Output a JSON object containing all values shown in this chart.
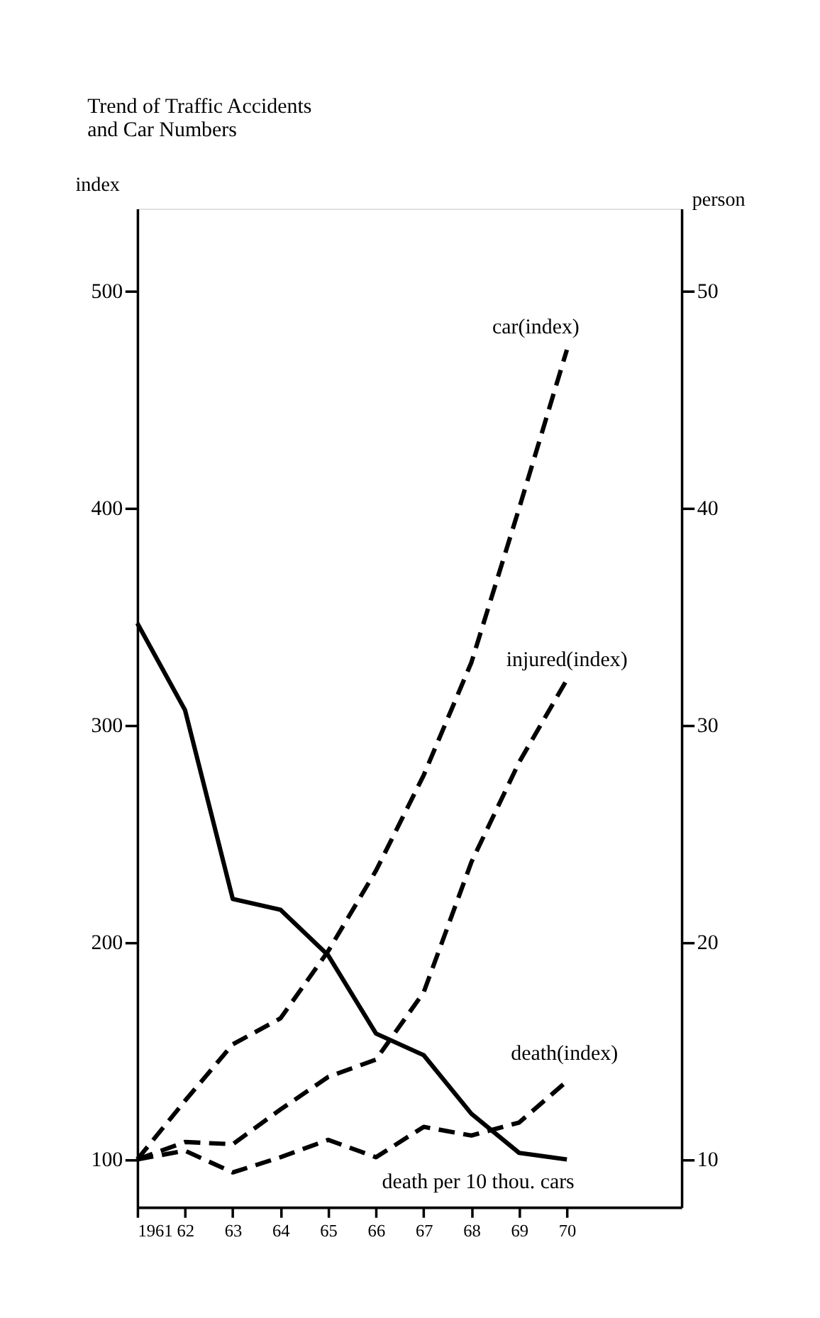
{
  "chart_data": {
    "type": "line",
    "title": "Trend of Traffic Accidents\nand Car Numbers",
    "ylabel": "index",
    "y2label": "person",
    "x": [
      1961,
      1962,
      1963,
      1964,
      1965,
      1966,
      1967,
      1968,
      1969,
      1970
    ],
    "xlim": [
      1961,
      1972.4
    ],
    "xticks": [
      1961,
      {
        "value": 1962,
        "label": "62"
      },
      {
        "value": 1963,
        "label": "63"
      },
      {
        "value": 1964,
        "label": "64"
      },
      {
        "value": 1965,
        "label": "65"
      },
      {
        "value": 1966,
        "label": "66"
      },
      {
        "value": 1967,
        "label": "67"
      },
      {
        "value": 1968,
        "label": "68"
      },
      {
        "value": 1969,
        "label": "69"
      },
      {
        "value": 1970,
        "label": "70"
      }
    ],
    "ylim": [
      78,
      538
    ],
    "yticks": [
      100,
      200,
      300,
      400,
      500
    ],
    "y2lim": [
      7.8,
      53.8
    ],
    "y2ticks": [
      10,
      20,
      30,
      40,
      50
    ],
    "grid": false,
    "marker": "none",
    "series": [
      {
        "name": "car(index)",
        "color": "#000000",
        "line_style": "dashed",
        "values": [
          100,
          127,
          153,
          165,
          196,
          233,
          277,
          329,
          400,
          473
        ]
      },
      {
        "name": "injured(index)",
        "color": "#000000",
        "line_style": "dashed",
        "values": [
          100,
          108,
          107,
          123,
          138,
          146,
          177,
          237,
          283,
          321
        ]
      },
      {
        "name": "death(index)",
        "color": "#000000",
        "line_style": "dashed",
        "values": [
          100,
          104,
          94,
          101,
          109,
          101,
          115,
          111,
          117,
          136
        ]
      },
      {
        "name": "death per 10 thou. cars",
        "color": "#000000",
        "line_style": "solid",
        "axis": "y2",
        "values": [
          34.7,
          30.7,
          22.0,
          21.5,
          19.4,
          15.8,
          14.8,
          12.1,
          10.3,
          10.0
        ]
      }
    ]
  }
}
